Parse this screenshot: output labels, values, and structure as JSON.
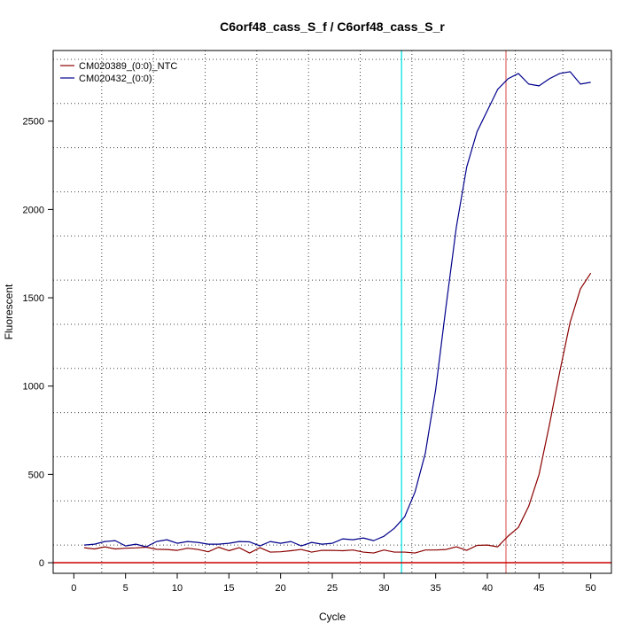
{
  "chart_data": {
    "type": "line",
    "title": "C6orf48_cass_S_f / C6orf48_cass_S_r",
    "xlabel": "Cycle",
    "ylabel": "Fluorescent",
    "xlim": [
      -2,
      52
    ],
    "ylim": [
      -60,
      2900
    ],
    "xticks": [
      0,
      5,
      10,
      15,
      20,
      25,
      30,
      35,
      40,
      45,
      50
    ],
    "yticks": [
      0,
      500,
      1000,
      1500,
      2000,
      2500
    ],
    "grid": true,
    "grid_x": [
      2.7,
      7.7,
      12.7,
      17.7,
      22.7,
      27.7,
      32.7,
      37.7,
      42.7,
      47.3
    ],
    "grid_y": [
      100,
      350,
      600,
      850,
      1100,
      1350,
      1600,
      1850,
      2100,
      2350,
      2600,
      2850
    ],
    "legend_position": "top-left",
    "baseline": {
      "y": 0,
      "color": "#cc0000"
    },
    "threshold_lines": [
      {
        "x": 31.7,
        "color": "#00e5e5"
      },
      {
        "x": 41.8,
        "color": "#e07070"
      }
    ],
    "x": [
      1,
      2,
      3,
      4,
      5,
      6,
      7,
      8,
      9,
      10,
      11,
      12,
      13,
      14,
      15,
      16,
      17,
      18,
      19,
      20,
      21,
      22,
      23,
      24,
      25,
      26,
      27,
      28,
      29,
      30,
      31,
      32,
      33,
      34,
      35,
      36,
      37,
      38,
      39,
      40,
      41,
      42,
      43,
      44,
      45,
      46,
      47,
      48,
      49,
      50
    ],
    "series": [
      {
        "name": "CM020389_(0:0)_NTC",
        "color": "#8b0000",
        "values": [
          85,
          78,
          90,
          78,
          82,
          84,
          88,
          76,
          75,
          70,
          82,
          75,
          62,
          88,
          68,
          85,
          55,
          85,
          60,
          62,
          68,
          75,
          60,
          70,
          70,
          68,
          72,
          60,
          55,
          72,
          60,
          60,
          55,
          72,
          72,
          75,
          90,
          70,
          98,
          100,
          90,
          150,
          200,
          320,
          500,
          780,
          1080,
          1360,
          1550,
          1640
        ]
      },
      {
        "name": "CM020432_(0:0)",
        "color": "#00008b",
        "values": [
          100,
          105,
          120,
          125,
          95,
          105,
          90,
          120,
          130,
          110,
          120,
          115,
          105,
          105,
          110,
          120,
          118,
          95,
          120,
          110,
          120,
          95,
          115,
          105,
          110,
          135,
          130,
          140,
          125,
          150,
          195,
          260,
          400,
          620,
          980,
          1450,
          1900,
          2240,
          2440,
          2560,
          2680,
          2740,
          2770,
          2710,
          2700,
          2740,
          2770,
          2780,
          2710,
          2720
        ]
      }
    ]
  }
}
